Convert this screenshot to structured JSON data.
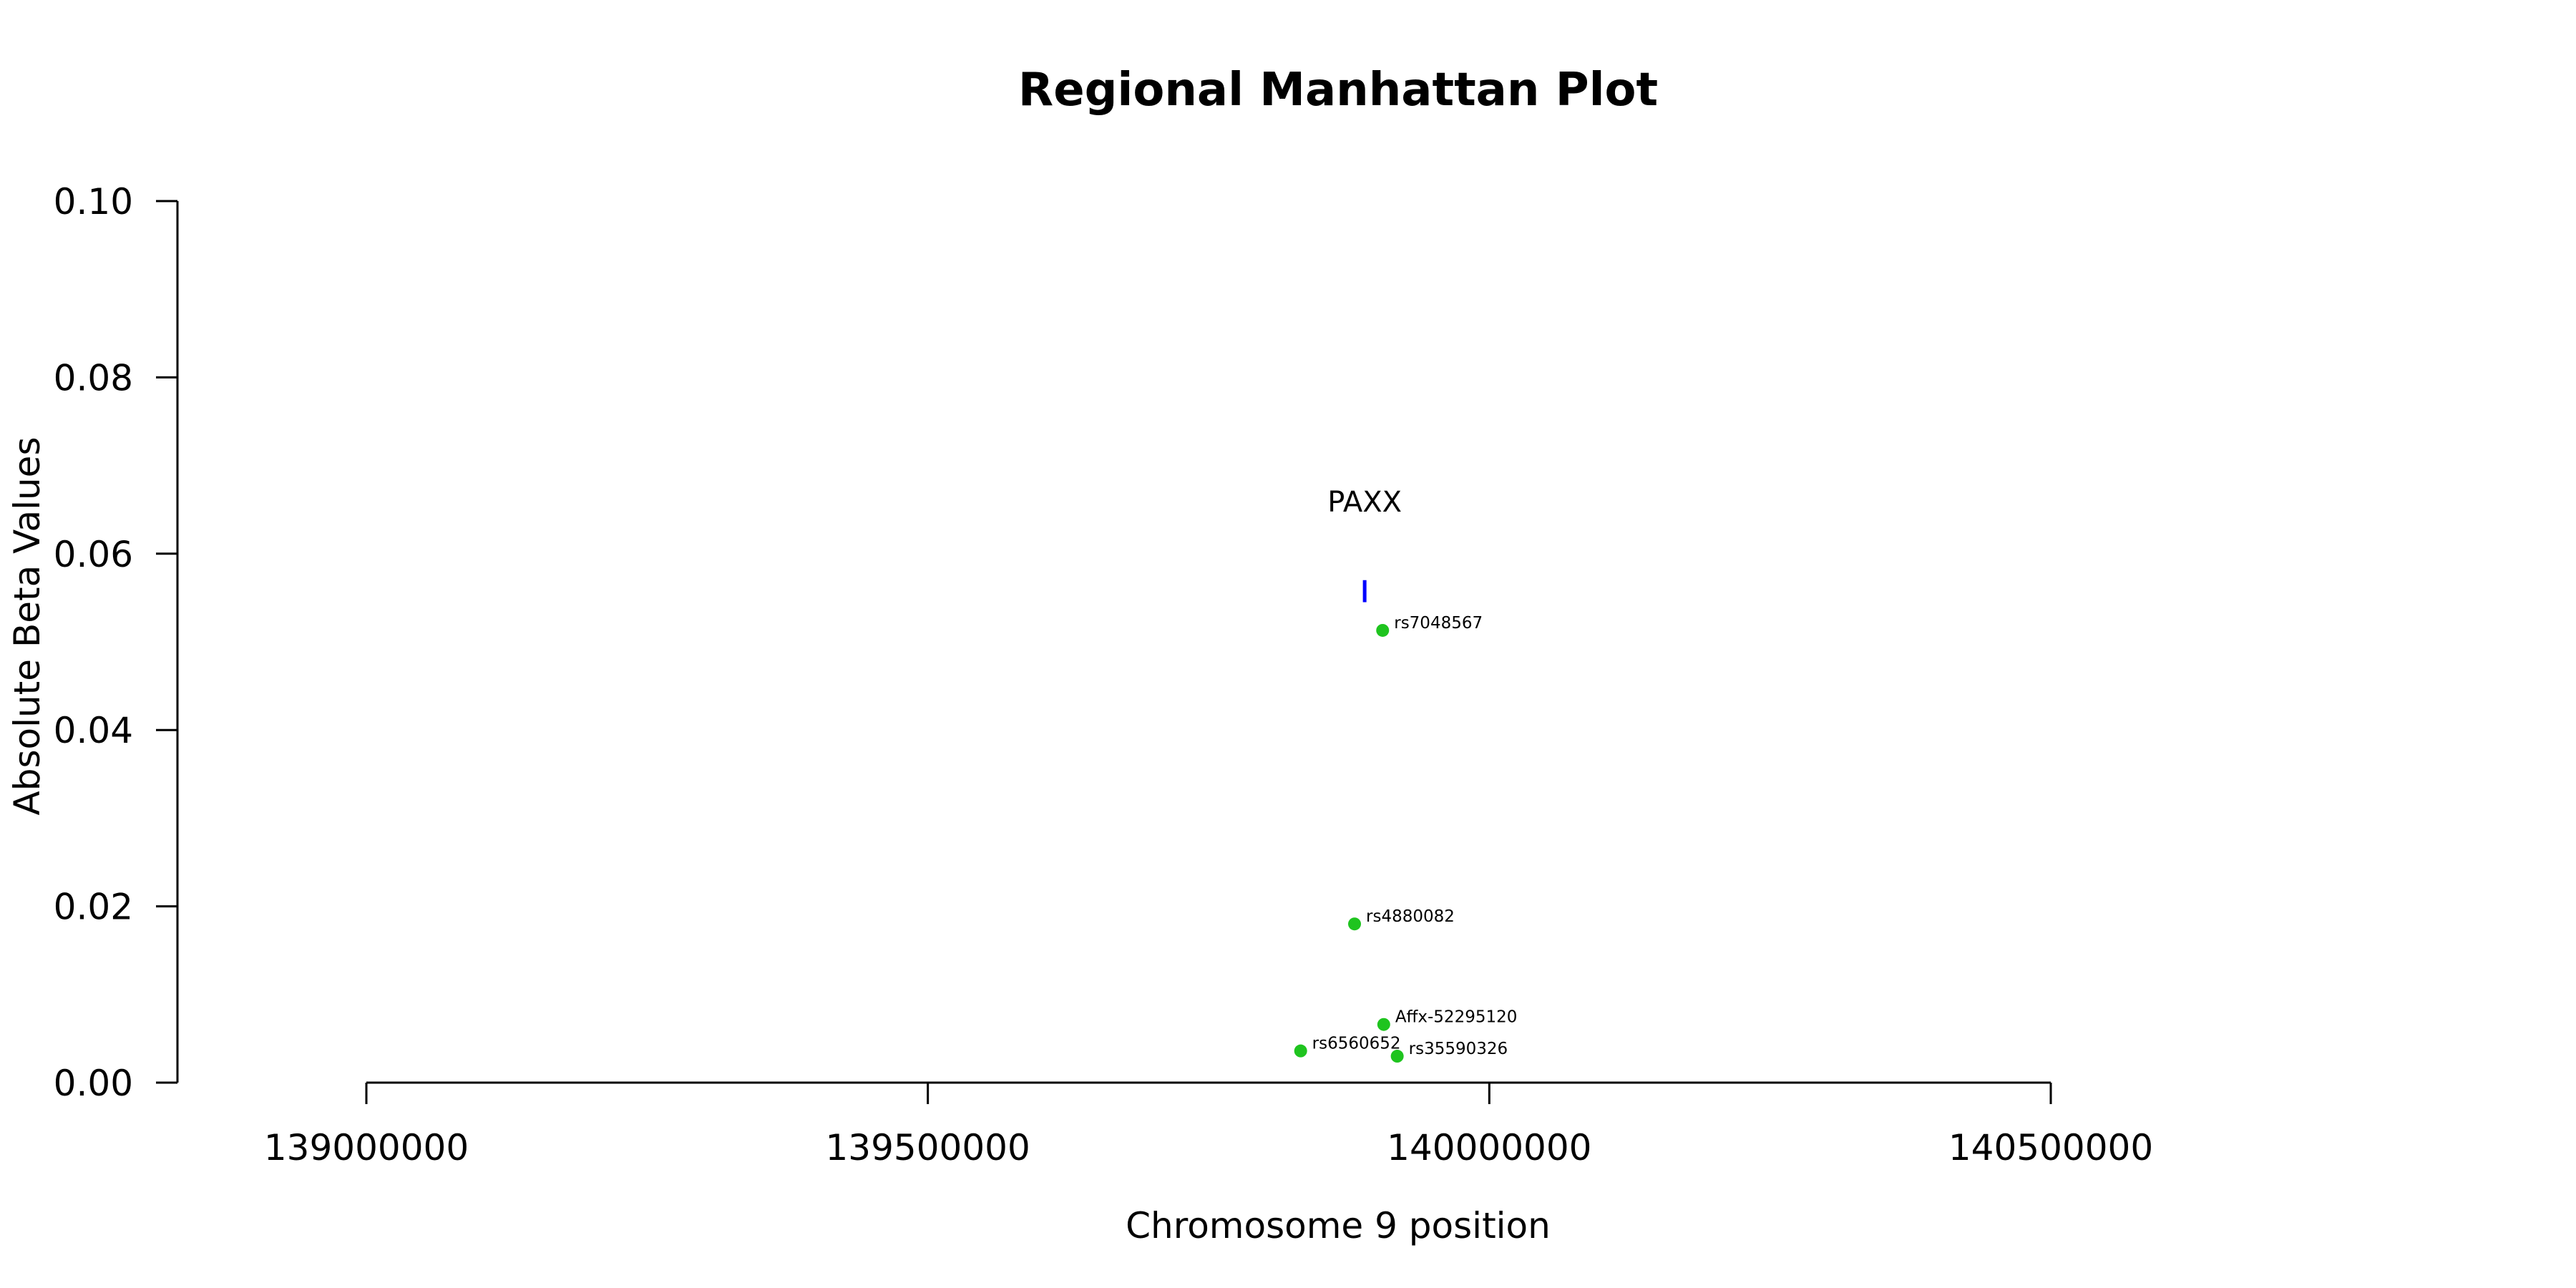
{
  "chart_data": {
    "type": "scatter",
    "title": "Regional Manhattan Plot",
    "xlabel": "Chromosome 9 position",
    "ylabel": "Absolute Beta Values",
    "xlim": [
      139000000,
      140500000
    ],
    "ylim": [
      0.0,
      0.1
    ],
    "x_ticks": [
      {
        "value": 139000000,
        "label": "139000000"
      },
      {
        "value": 139500000,
        "label": "139500000"
      },
      {
        "value": 140000000,
        "label": "140000000"
      },
      {
        "value": 140500000,
        "label": "140500000"
      }
    ],
    "y_ticks": [
      {
        "value": 0.0,
        "label": "0.00"
      },
      {
        "value": 0.02,
        "label": "0.02"
      },
      {
        "value": 0.04,
        "label": "0.04"
      },
      {
        "value": 0.06,
        "label": "0.06"
      },
      {
        "value": 0.08,
        "label": "0.08"
      },
      {
        "value": 0.1,
        "label": "0.10"
      }
    ],
    "points": [
      {
        "label": "rs7048567",
        "x": 139905000,
        "y": 0.0513
      },
      {
        "label": "rs4880082",
        "x": 139880000,
        "y": 0.018
      },
      {
        "label": "Affx-52295120",
        "x": 139906000,
        "y": 0.0066
      },
      {
        "label": "rs6560652",
        "x": 139832000,
        "y": 0.0036
      },
      {
        "label": "rs35590326",
        "x": 139918000,
        "y": 0.003
      }
    ],
    "gene": {
      "name": "PAXX",
      "x": 139889000,
      "y_low": 0.0545,
      "y_high": 0.057
    },
    "colors": {
      "point": "#1fc41f",
      "gene": "#0000ff",
      "axis": "#000000"
    }
  }
}
